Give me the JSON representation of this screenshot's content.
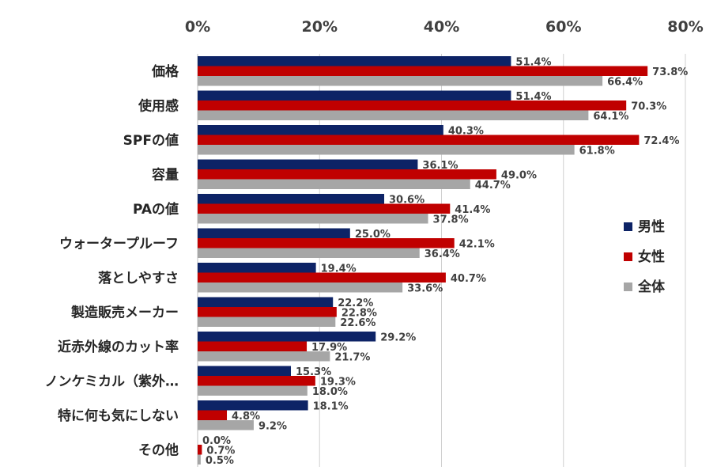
{
  "chart_data": {
    "type": "bar",
    "orientation": "horizontal",
    "title": "",
    "xlabel": "",
    "ylabel": "",
    "xlim": [
      0,
      80
    ],
    "ticks": [
      "0%",
      "20%",
      "40%",
      "60%",
      "80%"
    ],
    "tick_values": [
      0,
      20,
      40,
      60,
      80
    ],
    "categories": [
      "価格",
      "使用感",
      "SPFの値",
      "容量",
      "PAの値",
      "ウォータープルーフ",
      "落としやすさ",
      "製造販売メーカー",
      "近赤外線のカット率",
      "ノンケミカル（紫外…",
      "特に何も気にしない",
      "その他"
    ],
    "series": [
      {
        "name": "男性",
        "color": "#0d2366",
        "values": [
          51.4,
          51.4,
          40.3,
          36.1,
          30.6,
          25.0,
          19.4,
          22.2,
          29.2,
          15.3,
          18.1,
          0.0
        ]
      },
      {
        "name": "女性",
        "color": "#c00000",
        "values": [
          73.8,
          70.3,
          72.4,
          49.0,
          41.4,
          42.1,
          40.7,
          22.8,
          17.9,
          19.3,
          4.8,
          0.7
        ]
      },
      {
        "name": "全体",
        "color": "#a6a6a6",
        "values": [
          66.4,
          64.1,
          61.8,
          44.7,
          37.8,
          36.4,
          33.6,
          22.6,
          21.7,
          18.0,
          9.2,
          0.5
        ]
      }
    ],
    "grid": true,
    "legend_position": "right"
  }
}
